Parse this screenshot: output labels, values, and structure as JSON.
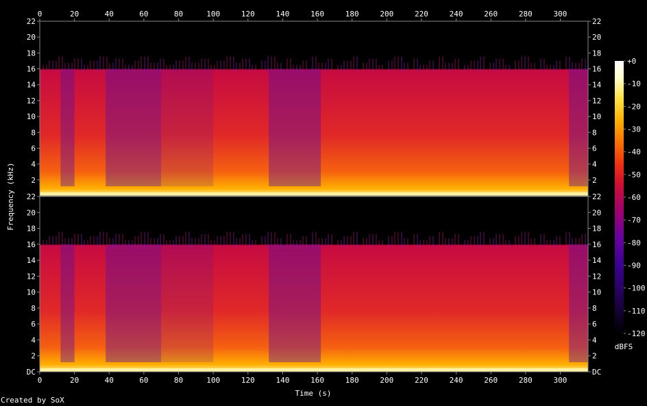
{
  "chart_data": {
    "type": "heatmap",
    "xlabel": "Time (s)",
    "ylabel": "Frequency (kHz)",
    "x_ticks": [
      "0",
      "20",
      "40",
      "60",
      "80",
      "100",
      "120",
      "140",
      "160",
      "180",
      "200",
      "220",
      "240",
      "260",
      "280",
      "300"
    ],
    "xlim": [
      0,
      316
    ],
    "channels": [
      {
        "y_ticks": [
          "2",
          "4",
          "6",
          "8",
          "10",
          "12",
          "14",
          "16",
          "18",
          "20",
          "22"
        ],
        "ylim": [
          0,
          22
        ]
      },
      {
        "y_ticks": [
          "DC",
          "2",
          "4",
          "6",
          "8",
          "10",
          "12",
          "14",
          "16",
          "18",
          "20",
          "22"
        ],
        "ylim": [
          0,
          22
        ]
      }
    ],
    "colorbar": {
      "label": "dBFS",
      "ticks": [
        "+0",
        "-10",
        "-20",
        "-30",
        "-40",
        "-50",
        "-60",
        "-70",
        "-80",
        "-90",
        "-100",
        "-110",
        "-120"
      ],
      "range": [
        -120,
        0
      ],
      "colors": [
        "#000000",
        "#1a0040",
        "#3a0090",
        "#6600a0",
        "#a00070",
        "#d01030",
        "#f03010",
        "#fa7000",
        "#ffb000",
        "#ffe040",
        "#ffffd0",
        "#ffffff"
      ]
    },
    "lowpass_cutoff_khz": 16,
    "segments": [
      {
        "start": 0,
        "end": 12,
        "level": "bright"
      },
      {
        "start": 12,
        "end": 20,
        "level": "dim"
      },
      {
        "start": 20,
        "end": 38,
        "level": "bright"
      },
      {
        "start": 38,
        "end": 70,
        "level": "dim"
      },
      {
        "start": 70,
        "end": 100,
        "level": "medium"
      },
      {
        "start": 100,
        "end": 132,
        "level": "bright"
      },
      {
        "start": 132,
        "end": 162,
        "level": "dim"
      },
      {
        "start": 162,
        "end": 195,
        "level": "bright"
      },
      {
        "start": 195,
        "end": 305,
        "level": "bright"
      },
      {
        "start": 305,
        "end": 316,
        "level": "dim"
      }
    ]
  },
  "footer": {
    "credit": "Created by SoX"
  }
}
